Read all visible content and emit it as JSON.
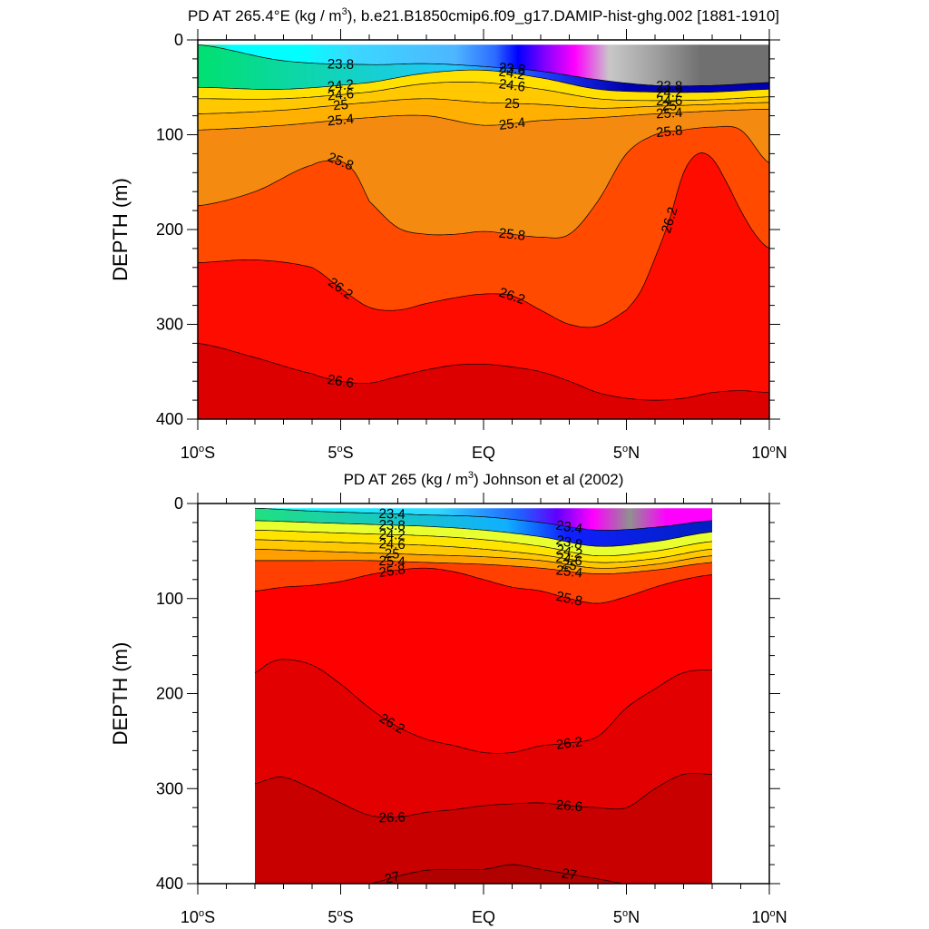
{
  "chart_data": [
    {
      "type": "heatmap",
      "subtype": "filled-contour",
      "title_pre": "PD AT 265.4°E (kg / m",
      "title_sup": "3",
      "title_post": "), b.e21.B1850cmip6.f09_g17.DAMIP-hist-ghg.002 [1881-1910]",
      "xlabel": "",
      "ylabel": "DEPTH (m)",
      "xlim": [
        -10,
        10
      ],
      "ylim": [
        400,
        0
      ],
      "x_ticks": [
        {
          "v": -10,
          "pre": "10",
          "sup": "o",
          "post": "S"
        },
        {
          "v": -5,
          "pre": "5",
          "sup": "o",
          "post": "S"
        },
        {
          "v": 0,
          "pre": "EQ",
          "sup": "",
          "post": ""
        },
        {
          "v": 5,
          "pre": "5",
          "sup": "o",
          "post": "N"
        },
        {
          "v": 10,
          "pre": "10",
          "sup": "o",
          "post": "N"
        }
      ],
      "y_ticks": [
        0,
        100,
        200,
        300,
        400
      ],
      "data_extent_x": [
        -10,
        10
      ],
      "data_extent_y": [
        5,
        400
      ],
      "contours": [
        {
          "level": "23.8",
          "x": [
            -10,
            -7,
            -4,
            -2,
            0,
            2,
            4,
            6,
            8,
            10
          ],
          "y": [
            5,
            22,
            26,
            25,
            28,
            33,
            42,
            48,
            48,
            45
          ]
        },
        {
          "level": "24.2",
          "x": [
            -10,
            -7,
            -4,
            -2,
            0,
            2,
            4,
            6,
            8,
            10
          ],
          "y": [
            50,
            52,
            45,
            35,
            32,
            40,
            52,
            55,
            55,
            52
          ]
        },
        {
          "level": "24.6",
          "x": [
            -10,
            -7,
            -4,
            -2,
            0,
            2,
            4,
            6,
            8,
            10
          ],
          "y": [
            62,
            62,
            55,
            46,
            45,
            52,
            62,
            64,
            63,
            60
          ]
        },
        {
          "level": "25",
          "x": [
            -10,
            -7,
            -4,
            -2,
            0,
            2,
            4,
            6,
            8,
            10
          ],
          "y": [
            78,
            74,
            66,
            62,
            66,
            68,
            72,
            70,
            68,
            66
          ]
        },
        {
          "level": "25.4",
          "x": [
            -10,
            -7,
            -4,
            -2,
            0,
            2,
            4,
            6,
            8,
            10
          ],
          "y": [
            95,
            90,
            82,
            80,
            90,
            85,
            82,
            78,
            75,
            73
          ]
        },
        {
          "level": "25.8",
          "x": [
            -10,
            -8,
            -6,
            -5,
            -4.5,
            -4,
            -3,
            -2,
            -1,
            0,
            1,
            2,
            3,
            4,
            5,
            6,
            7,
            8,
            9,
            10
          ],
          "y": [
            175,
            160,
            132,
            128,
            140,
            170,
            198,
            205,
            205,
            202,
            205,
            208,
            205,
            170,
            120,
            100,
            95,
            92,
            95,
            130
          ]
        },
        {
          "level": "26.2",
          "x": [
            -10,
            -8,
            -6,
            -5,
            -4,
            -3,
            -2,
            -1,
            0,
            1,
            2,
            3,
            4,
            5,
            5.5,
            6,
            6.5,
            7,
            7.5,
            8,
            8.5,
            9,
            9.5,
            10
          ],
          "y": [
            235,
            232,
            240,
            262,
            282,
            285,
            278,
            272,
            268,
            270,
            285,
            300,
            302,
            285,
            265,
            230,
            190,
            140,
            120,
            125,
            150,
            180,
            205,
            220
          ]
        },
        {
          "level": "26.6",
          "x": [
            -10,
            -8,
            -6,
            -5,
            -4,
            -3,
            -2,
            -1,
            0,
            1,
            2,
            3,
            4,
            5,
            6,
            7,
            8,
            9,
            10
          ],
          "y": [
            320,
            335,
            352,
            360,
            362,
            355,
            348,
            343,
            342,
            345,
            350,
            360,
            372,
            378,
            380,
            378,
            372,
            370,
            372
          ]
        }
      ]
    },
    {
      "type": "heatmap",
      "subtype": "filled-contour",
      "title_pre": "PD AT 265 (kg / m",
      "title_sup": "3",
      "title_post": ") Johnson et al (2002)",
      "xlabel": "",
      "ylabel": "DEPTH (m)",
      "xlim": [
        -10,
        10
      ],
      "ylim": [
        400,
        0
      ],
      "x_ticks": [
        {
          "v": -10,
          "pre": "10",
          "sup": "o",
          "post": "S"
        },
        {
          "v": -5,
          "pre": "5",
          "sup": "o",
          "post": "S"
        },
        {
          "v": 0,
          "pre": "EQ",
          "sup": "",
          "post": ""
        },
        {
          "v": 5,
          "pre": "5",
          "sup": "o",
          "post": "N"
        },
        {
          "v": 10,
          "pre": "10",
          "sup": "o",
          "post": "N"
        }
      ],
      "y_ticks": [
        0,
        100,
        200,
        300,
        400
      ],
      "data_extent_x": [
        -8,
        8
      ],
      "data_extent_y": [
        5,
        400
      ],
      "contours": [
        {
          "level": "23.4",
          "x": [
            -8,
            -6,
            -4,
            -2,
            0,
            2,
            4,
            6,
            8
          ],
          "y": [
            5,
            8,
            10,
            12,
            14,
            20,
            28,
            25,
            18
          ]
        },
        {
          "level": "23.8",
          "x": [
            -8,
            -6,
            -4,
            -2,
            0,
            2,
            4,
            6,
            8
          ],
          "y": [
            18,
            20,
            22,
            24,
            28,
            35,
            45,
            40,
            30
          ]
        },
        {
          "level": "24.2",
          "x": [
            -8,
            -6,
            -4,
            -2,
            0,
            2,
            4,
            6,
            8
          ],
          "y": [
            28,
            30,
            32,
            34,
            38,
            45,
            55,
            50,
            40
          ]
        },
        {
          "level": "24.6",
          "x": [
            -8,
            -6,
            -4,
            -2,
            0,
            2,
            4,
            6,
            8
          ],
          "y": [
            38,
            40,
            42,
            44,
            48,
            54,
            62,
            58,
            48
          ]
        },
        {
          "level": "25",
          "x": [
            -8,
            -6,
            -4,
            -2,
            0,
            2,
            4,
            6,
            8
          ],
          "y": [
            48,
            50,
            52,
            54,
            56,
            60,
            68,
            64,
            55
          ]
        },
        {
          "level": "25.4",
          "x": [
            -8,
            -6,
            -4,
            -2,
            0,
            2,
            4,
            6,
            8
          ],
          "y": [
            60,
            60,
            60,
            62,
            64,
            68,
            74,
            70,
            62
          ]
        },
        {
          "level": "25.8",
          "x": [
            -8,
            -7,
            -6,
            -5,
            -4,
            -3,
            -2,
            -1,
            0,
            1,
            2,
            3,
            4,
            5,
            6,
            7,
            8
          ],
          "y": [
            92,
            88,
            86,
            82,
            75,
            70,
            68,
            72,
            80,
            88,
            92,
            100,
            105,
            98,
            88,
            80,
            75
          ]
        },
        {
          "level": "26.2",
          "x": [
            -8,
            -7.5,
            -7,
            -6,
            -5,
            -4,
            -3,
            -2,
            -1,
            0,
            1,
            2,
            3,
            4,
            5,
            6,
            7,
            8
          ],
          "y": [
            178,
            168,
            164,
            170,
            190,
            215,
            235,
            248,
            255,
            262,
            262,
            255,
            252,
            245,
            215,
            195,
            178,
            175
          ]
        },
        {
          "level": "26.6",
          "x": [
            -8,
            -7.5,
            -7,
            -6,
            -5,
            -4,
            -3,
            -2,
            -1,
            0,
            1,
            2,
            3,
            4,
            5,
            6,
            7,
            8
          ],
          "y": [
            295,
            290,
            288,
            300,
            315,
            328,
            330,
            325,
            322,
            318,
            316,
            315,
            318,
            320,
            320,
            300,
            285,
            285
          ]
        },
        {
          "level": "27",
          "x": [
            -8,
            -6,
            -4,
            -3,
            -2,
            -1,
            0,
            1,
            2,
            3,
            4,
            5,
            6,
            7,
            8
          ],
          "y": [
            400,
            400,
            400,
            392,
            386,
            385,
            385,
            380,
            385,
            390,
            395,
            400,
            400,
            400,
            400
          ]
        }
      ]
    }
  ]
}
